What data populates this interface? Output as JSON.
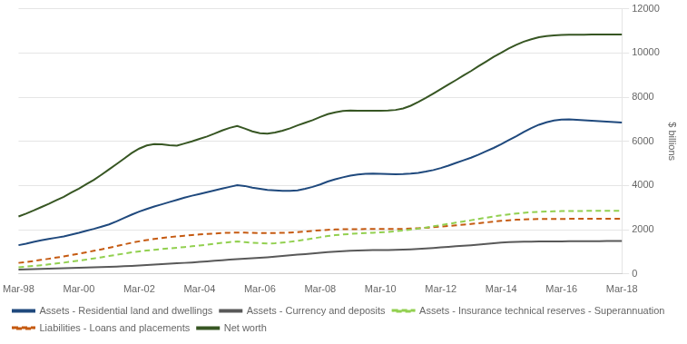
{
  "chart_data": {
    "type": "line",
    "ylabel": "$ billions",
    "categories": [
      "Mar-98",
      null,
      null,
      null,
      null,
      null,
      null,
      null,
      "Mar-00",
      null,
      null,
      null,
      null,
      null,
      null,
      null,
      "Mar-02",
      null,
      null,
      null,
      null,
      null,
      null,
      null,
      "Mar-04",
      null,
      null,
      null,
      null,
      null,
      null,
      null,
      "Mar-06",
      null,
      null,
      null,
      null,
      null,
      null,
      null,
      "Mar-08",
      null,
      null,
      null,
      null,
      null,
      null,
      null,
      "Mar-10",
      null,
      null,
      null,
      null,
      null,
      null,
      null,
      "Mar-12",
      null,
      null,
      null,
      null,
      null,
      null,
      null,
      "Mar-14",
      null,
      null,
      null,
      null,
      null,
      null,
      null,
      "Mar-16",
      null,
      null,
      null,
      null,
      null,
      null,
      null,
      "Mar-18"
    ],
    "ylim": [
      0,
      12000
    ],
    "yticks": [
      0,
      2000,
      4000,
      6000,
      8000,
      10000,
      12000
    ],
    "grid": "y",
    "legend": "bottom",
    "series": [
      {
        "name": "Assets - Residential land and dwellings",
        "color": "#1f497d",
        "line_style": "solid",
        "values": [
          1300,
          1370,
          1450,
          1520,
          1580,
          1640,
          1700,
          1780,
          1860,
          1950,
          2040,
          2140,
          2240,
          2380,
          2530,
          2680,
          2820,
          2940,
          3050,
          3150,
          3250,
          3350,
          3450,
          3540,
          3620,
          3700,
          3780,
          3860,
          3940,
          4020,
          3980,
          3900,
          3850,
          3800,
          3780,
          3760,
          3760,
          3780,
          3850,
          3940,
          4050,
          4180,
          4280,
          4370,
          4450,
          4500,
          4530,
          4540,
          4530,
          4520,
          4510,
          4520,
          4540,
          4570,
          4630,
          4700,
          4790,
          4900,
          5020,
          5140,
          5260,
          5400,
          5550,
          5700,
          5870,
          6050,
          6230,
          6420,
          6600,
          6750,
          6860,
          6940,
          6980,
          6990,
          6970,
          6950,
          6930,
          6910,
          6890,
          6870,
          6850
        ]
      },
      {
        "name": "Assets - Currency and deposits",
        "color": "#595959",
        "line_style": "solid",
        "values": [
          200,
          210,
          220,
          230,
          240,
          250,
          260,
          270,
          280,
          290,
          300,
          310,
          320,
          335,
          350,
          365,
          380,
          400,
          420,
          440,
          460,
          480,
          500,
          520,
          545,
          570,
          595,
          620,
          645,
          670,
          690,
          710,
          730,
          755,
          780,
          810,
          840,
          870,
          900,
          930,
          960,
          990,
          1010,
          1030,
          1050,
          1060,
          1070,
          1075,
          1080,
          1085,
          1090,
          1100,
          1115,
          1130,
          1150,
          1175,
          1200,
          1225,
          1250,
          1275,
          1300,
          1330,
          1360,
          1390,
          1415,
          1435,
          1450,
          1460,
          1465,
          1468,
          1470,
          1472,
          1474,
          1476,
          1478,
          1480,
          1482,
          1484,
          1486,
          1488,
          1490
        ]
      },
      {
        "name": "Assets - Insurance technical reserves - Superannuation",
        "color": "#92d050",
        "line_style": "dashed",
        "values": [
          300,
          330,
          360,
          395,
          430,
          470,
          510,
          555,
          600,
          650,
          700,
          755,
          810,
          865,
          920,
          975,
          1020,
          1060,
          1095,
          1125,
          1155,
          1185,
          1215,
          1250,
          1285,
          1325,
          1365,
          1405,
          1440,
          1470,
          1440,
          1410,
          1390,
          1375,
          1390,
          1420,
          1455,
          1500,
          1550,
          1605,
          1660,
          1715,
          1755,
          1785,
          1810,
          1830,
          1850,
          1865,
          1880,
          1900,
          1930,
          1965,
          2005,
          2050,
          2100,
          2155,
          2210,
          2265,
          2320,
          2375,
          2430,
          2490,
          2545,
          2600,
          2650,
          2695,
          2735,
          2765,
          2790,
          2810,
          2825,
          2835,
          2842,
          2847,
          2850,
          2851,
          2852,
          2852,
          2852,
          2852,
          2852
        ]
      },
      {
        "name": "Liabilities - Loans and placements",
        "color": "#c55a11",
        "line_style": "dashed",
        "values": [
          500,
          540,
          585,
          635,
          685,
          740,
          795,
          855,
          915,
          980,
          1045,
          1115,
          1185,
          1260,
          1335,
          1410,
          1475,
          1530,
          1580,
          1625,
          1665,
          1700,
          1730,
          1760,
          1785,
          1810,
          1830,
          1850,
          1865,
          1875,
          1870,
          1860,
          1850,
          1845,
          1850,
          1860,
          1875,
          1895,
          1920,
          1950,
          1975,
          1995,
          2010,
          2020,
          2025,
          2028,
          2030,
          2030,
          2030,
          2030,
          2032,
          2040,
          2052,
          2068,
          2088,
          2112,
          2140,
          2168,
          2198,
          2228,
          2260,
          2295,
          2330,
          2368,
          2400,
          2428,
          2452,
          2468,
          2478,
          2485,
          2488,
          2490,
          2491,
          2492,
          2492,
          2492,
          2492,
          2492,
          2492,
          2492,
          2492
        ]
      },
      {
        "name": "Net worth",
        "color": "#375623",
        "line_style": "solid",
        "values": [
          2600,
          2730,
          2870,
          3020,
          3170,
          3330,
          3490,
          3680,
          3860,
          4060,
          4260,
          4490,
          4730,
          4970,
          5220,
          5470,
          5670,
          5810,
          5870,
          5860,
          5820,
          5800,
          5900,
          6000,
          6110,
          6220,
          6350,
          6490,
          6610,
          6690,
          6580,
          6450,
          6370,
          6350,
          6400,
          6480,
          6590,
          6720,
          6840,
          6960,
          7100,
          7230,
          7310,
          7370,
          7390,
          7380,
          7380,
          7380,
          7380,
          7390,
          7420,
          7490,
          7610,
          7780,
          7960,
          8160,
          8360,
          8570,
          8770,
          8980,
          9180,
          9400,
          9610,
          9820,
          10010,
          10200,
          10370,
          10510,
          10620,
          10710,
          10760,
          10790,
          10810,
          10820,
          10825,
          10828,
          10830,
          10831,
          10831,
          10831,
          10831
        ]
      }
    ]
  }
}
